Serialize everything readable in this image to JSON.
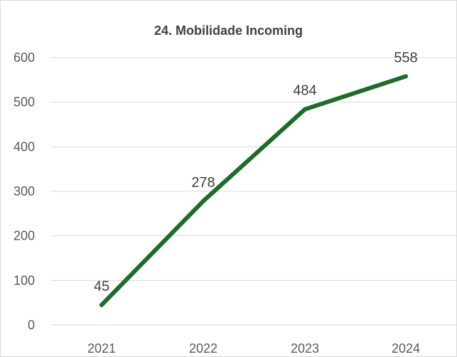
{
  "chart_data": {
    "type": "line",
    "title": "24. Mobilidade Incoming",
    "xlabel": "",
    "ylabel": "",
    "categories": [
      "2021",
      "2022",
      "2023",
      "2024"
    ],
    "series": [
      {
        "values": [
          45,
          278,
          484,
          558
        ],
        "color": "#1e6b2a"
      }
    ],
    "data_labels": [
      "45",
      "278",
      "484",
      "558"
    ],
    "ylim": [
      0,
      600
    ],
    "y_ticks": [
      "0",
      "100",
      "200",
      "300",
      "400",
      "500",
      "600"
    ],
    "grid": true,
    "legend": "none",
    "gridline_color": "#d9d9d9"
  }
}
